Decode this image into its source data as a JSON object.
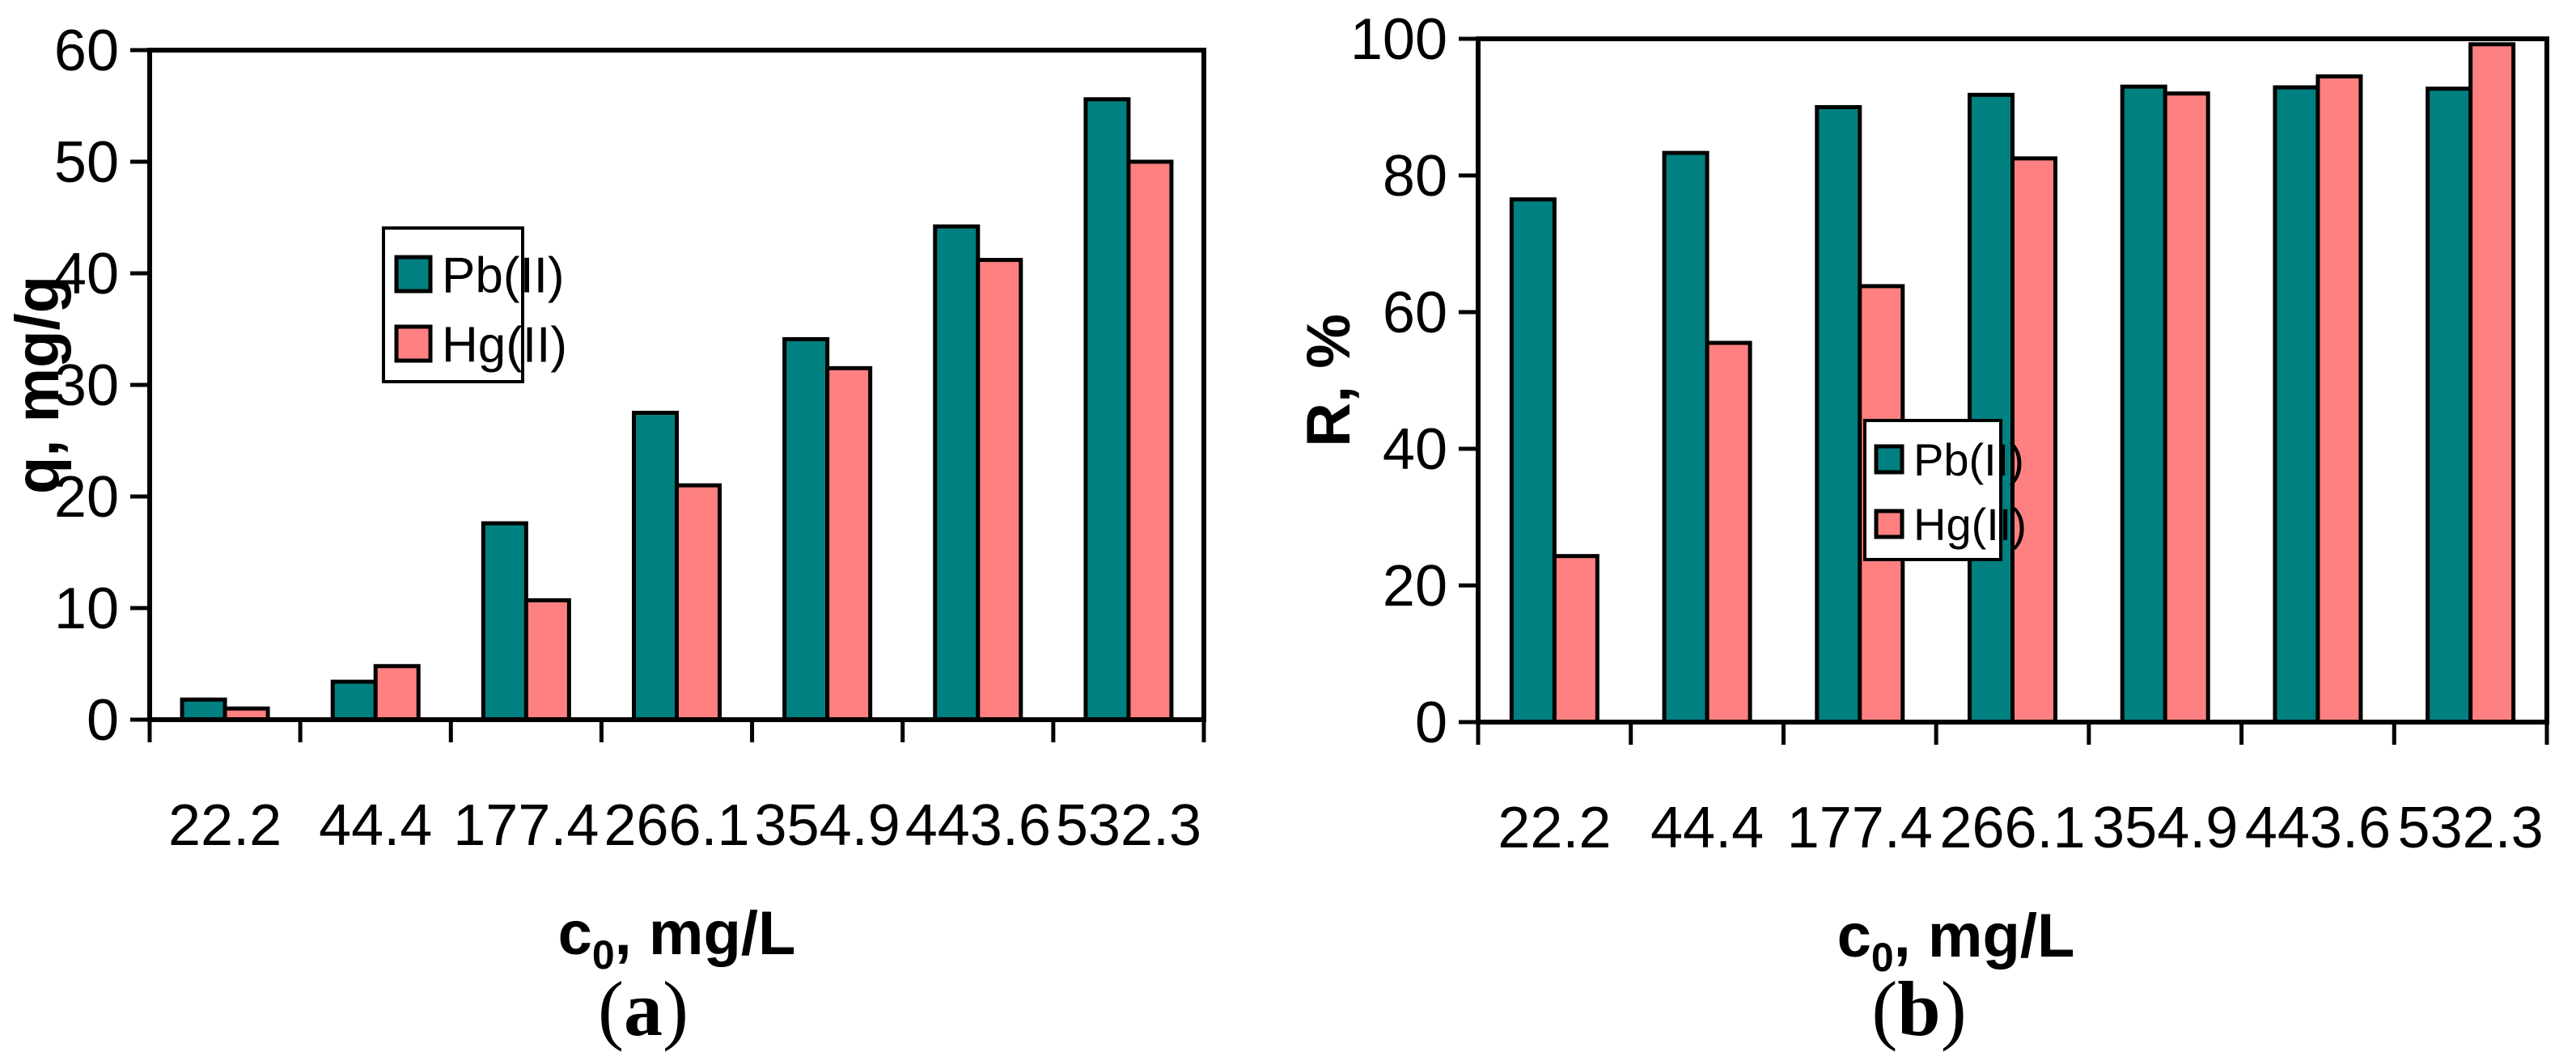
{
  "figure": {
    "background": "#ffffff",
    "bar_outline_color": "#000000",
    "axis_color": "#000000"
  },
  "series_colors": {
    "pb": "#008080",
    "hg": "#FF8080"
  },
  "panels": {
    "a": {
      "open": "(",
      "letter": "a",
      "close": ")"
    },
    "b": {
      "open": "(",
      "letter": "b",
      "close": ")"
    }
  },
  "chart_data": [
    {
      "type": "bar",
      "panel": "a",
      "title": "",
      "categories": [
        "22.2",
        "44.4",
        "177.4",
        "266.1",
        "354.9",
        "443.6",
        "532.3"
      ],
      "series": [
        {
          "name": "Pb(II)",
          "color": "#008080",
          "values": [
            1.8,
            3.4,
            17.6,
            27.5,
            34.1,
            44.2,
            55.6
          ]
        },
        {
          "name": "Hg(II)",
          "color": "#FF8080",
          "values": [
            1.0,
            4.8,
            10.7,
            21.0,
            31.5,
            41.2,
            50.0
          ]
        }
      ],
      "xlabel_parts": {
        "main": "c",
        "sub": "0",
        "rest": ", mg/L"
      },
      "ylabel": "q, mg/g",
      "ylim": [
        0,
        60
      ],
      "ytick_interval": 10,
      "grid": false,
      "legend_position": "upper-left-inside"
    },
    {
      "type": "bar",
      "panel": "b",
      "title": "",
      "categories": [
        "22.2",
        "44.4",
        "177.4",
        "266.1",
        "354.9",
        "443.6",
        "532.3"
      ],
      "series": [
        {
          "name": "Pb(II)",
          "color": "#008080",
          "values": [
            76.5,
            83.3,
            90.0,
            91.8,
            93.0,
            92.9,
            92.7
          ]
        },
        {
          "name": "Hg(II)",
          "color": "#FF8080",
          "values": [
            24.3,
            55.5,
            63.8,
            82.5,
            92.0,
            94.5,
            99.2
          ]
        }
      ],
      "xlabel_parts": {
        "main": "c",
        "sub": "0",
        "rest": ", mg/L"
      },
      "ylabel": "R, %",
      "ylim": [
        0,
        100
      ],
      "ytick_interval": 20,
      "grid": false,
      "legend_position": "center-lower-inside"
    }
  ]
}
